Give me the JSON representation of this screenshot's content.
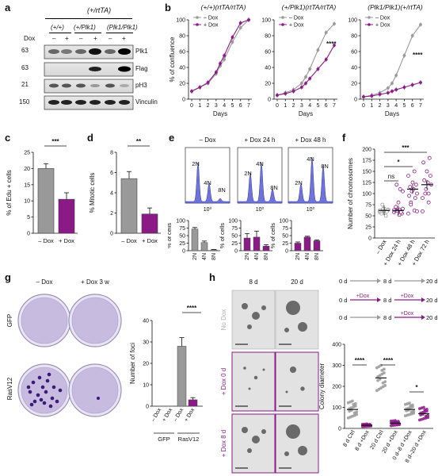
{
  "panels": {
    "a": {
      "label": "a",
      "header": "(+/rtTA)",
      "genotypes": [
        "(+/+)",
        "(+/Plk1)",
        "(Plk1/Plk1)"
      ],
      "dox_label": "Dox",
      "dox_states": [
        "–",
        "+",
        "–",
        "+",
        "–",
        "+"
      ],
      "mw": [
        "63",
        "63",
        "21",
        "150"
      ],
      "blots": [
        "Plk1",
        "Flag",
        "pH3",
        "Vinculin"
      ]
    },
    "b": {
      "label": "b",
      "titles": [
        "(+/+)(rtTA/rtTA)",
        "(+/Plk1)(rtTA/rtTA)",
        "(Plk1/Plk1)(+/rtTA)"
      ],
      "legend": [
        "– Dox",
        "+ Dox"
      ],
      "ylabel": "% of confluence",
      "xlabel": "Days",
      "yticks": [
        "0",
        "20",
        "40",
        "60",
        "80",
        "100"
      ],
      "xticks": [
        "0",
        "1",
        "2",
        "3",
        "4",
        "5",
        "6",
        "7"
      ],
      "sig": "****"
    },
    "c": {
      "label": "c",
      "ylabel": "% of Edu + cells",
      "yticks": [
        "0",
        "5",
        "10",
        "15",
        "20",
        "25"
      ],
      "cats": [
        "– Dox",
        "+ Dox"
      ],
      "sig": "***"
    },
    "d": {
      "label": "d",
      "ylabel": "% Mitotic cells",
      "yticks": [
        "0",
        "2",
        "4",
        "6",
        "8"
      ],
      "cats": [
        "– Dox",
        "+ Dox"
      ],
      "sig": "**"
    },
    "e": {
      "label": "e",
      "titles": [
        "– Dox",
        "+ Dox 24 h",
        "+ Dox 48 h"
      ],
      "peaks": [
        "2N",
        "4N",
        "8N"
      ],
      "axis_tick": "10⁰",
      "ylabel": "% of cells",
      "yticks": [
        "0",
        "25",
        "50",
        "75",
        "100"
      ],
      "cats": [
        "2N",
        "4N",
        "8N"
      ]
    },
    "f": {
      "label": "f",
      "ylabel": "Number of chromosomes",
      "yticks": [
        "0",
        "25",
        "50",
        "75",
        "100",
        "125",
        "150",
        "175",
        "200"
      ],
      "cats": [
        "– Dox",
        "+ Dox 24 h",
        "+ Dox 48 h",
        "+ Dox 72 h"
      ],
      "sigs": [
        "ns",
        "*",
        "***"
      ]
    },
    "g": {
      "label": "g",
      "cols": [
        "– Dox",
        "+ Dox 3 w"
      ],
      "rows": [
        "GFP",
        "RasV12"
      ],
      "ylabel": "Number of foci",
      "yticks": [
        "0",
        "10",
        "20",
        "30",
        "40"
      ],
      "cats": [
        "– Dox",
        "+ Dox",
        "– Dox",
        "+ Dox"
      ],
      "groups": [
        "GFP",
        "RasV12"
      ],
      "sig": "****"
    },
    "h": {
      "label": "h",
      "cols": [
        "8 d",
        "20 d"
      ],
      "rows": [
        "No Dox",
        "+ Dox 0 d",
        "+ Dox 8 d"
      ],
      "scheme": [
        {
          "start": "0 d",
          "mid": "8 d",
          "end": "20 d",
          "tag1": "",
          "tag2": ""
        },
        {
          "start": "0 d",
          "mid": "8 d",
          "end": "20 d",
          "tag1": "+Dox",
          "tag2": "+Dox"
        },
        {
          "start": "0 d",
          "mid": "8 d",
          "end": "20 d",
          "tag1": "",
          "tag2": "+Dox"
        }
      ],
      "ylabel": "Colony diameter",
      "yticks": [
        "0",
        "100",
        "200",
        "300",
        "400"
      ],
      "cats": [
        "8 d Ctrl",
        "8 d +Dox",
        "20 d Ctrl",
        "20 d +Dox",
        "0 d–8 d +Dox",
        "8 d–20 d +Dox"
      ],
      "sigs": [
        "****",
        "****",
        "*"
      ]
    }
  },
  "colors": {
    "grey": "#999999",
    "purple": "#8b1a87",
    "hist": "#6f73d8",
    "plate": "#c7bbe0"
  },
  "chart_data": [
    {
      "type": "line",
      "title": "(+/+)(rtTA/rtTA)",
      "xlabel": "Days",
      "ylabel": "% of confluence",
      "x": [
        0,
        1,
        2,
        3,
        3.5,
        4,
        5,
        6,
        7
      ],
      "ylim": [
        0,
        100
      ],
      "series": [
        {
          "name": "– Dox",
          "values": [
            10,
            15,
            20,
            32,
            42,
            50,
            72,
            90,
            100
          ]
        },
        {
          "name": "+ Dox",
          "values": [
            10,
            15,
            21,
            34,
            45,
            55,
            78,
            96,
            100
          ]
        }
      ]
    },
    {
      "type": "line",
      "title": "(+/Plk1)(rtTA/rtTA)",
      "xlabel": "Days",
      "ylabel": "% of confluence",
      "x": [
        0,
        1,
        2,
        3,
        3.5,
        4,
        5,
        6,
        7
      ],
      "ylim": [
        0,
        100
      ],
      "series": [
        {
          "name": "– Dox",
          "values": [
            5,
            8,
            12,
            20,
            28,
            38,
            62,
            84,
            95
          ]
        },
        {
          "name": "+ Dox",
          "values": [
            5,
            7,
            10,
            15,
            20,
            26,
            38,
            50,
            68
          ]
        }
      ]
    },
    {
      "type": "line",
      "title": "(Plk1/Plk1)(+/rtTA)",
      "xlabel": "Days",
      "ylabel": "% of confluence",
      "x": [
        0,
        1,
        2,
        3,
        3.5,
        4,
        5,
        6,
        7
      ],
      "ylim": [
        0,
        100
      ],
      "series": [
        {
          "name": "– Dox",
          "values": [
            3,
            5,
            8,
            14,
            20,
            30,
            55,
            80,
            94
          ]
        },
        {
          "name": "+ Dox",
          "values": [
            3,
            4,
            6,
            8,
            10,
            12,
            15,
            18,
            21
          ]
        }
      ]
    },
    {
      "type": "bar",
      "ylabel": "% of Edu + cells",
      "categories": [
        "– Dox",
        "+ Dox"
      ],
      "values": [
        20,
        10.5
      ],
      "errors": [
        1.5,
        2
      ],
      "ylim": [
        0,
        25
      ]
    },
    {
      "type": "bar",
      "ylabel": "% Mitotic cells",
      "categories": [
        "– Dox",
        "+ Dox"
      ],
      "values": [
        5.4,
        1.9
      ],
      "errors": [
        0.7,
        0.6
      ],
      "ylim": [
        0,
        8
      ]
    },
    {
      "type": "bar",
      "title": "– Dox",
      "ylabel": "% of cells",
      "categories": [
        "2N",
        "4N",
        "8N"
      ],
      "values": [
        72,
        27,
        3
      ],
      "errors": [
        5,
        5,
        1
      ],
      "ylim": [
        0,
        100
      ]
    },
    {
      "type": "bar",
      "title": "+ Dox 24 h",
      "ylabel": "% of cells",
      "categories": [
        "2N",
        "4N",
        "8N"
      ],
      "values": [
        42,
        45,
        15
      ],
      "errors": [
        15,
        20,
        5
      ],
      "ylim": [
        0,
        100
      ]
    },
    {
      "type": "bar",
      "title": "+ Dox 48 h",
      "ylabel": "% of cells",
      "categories": [
        "2N",
        "4N",
        "8N"
      ],
      "values": [
        25,
        45,
        33
      ],
      "errors": [
        4,
        3,
        3
      ],
      "ylim": [
        0,
        100
      ]
    },
    {
      "type": "scatter",
      "ylabel": "Number of chromosomes",
      "categories": [
        "– Dox",
        "+ Dox 24 h",
        "+ Dox 48 h",
        "+ Dox 72 h"
      ],
      "means": [
        62,
        62,
        110,
        120
      ],
      "ylim": [
        0,
        200
      ]
    },
    {
      "type": "bar",
      "ylabel": "Number of foci",
      "categories": [
        "GFP – Dox",
        "GFP + Dox",
        "RasV12 – Dox",
        "RasV12 + Dox"
      ],
      "values": [
        0,
        0,
        28,
        3
      ],
      "errors": [
        0,
        0,
        4,
        1
      ],
      "ylim": [
        0,
        40
      ]
    },
    {
      "type": "scatter",
      "ylabel": "Colony diameter",
      "categories": [
        "8 d Ctrl",
        "8 d +Dox",
        "20 d Ctrl",
        "20 d +Dox",
        "0 d–8 d +Dox",
        "8 d–20 d +Dox"
      ],
      "means": [
        90,
        15,
        240,
        25,
        90,
        70
      ],
      "ylim": [
        0,
        400
      ]
    }
  ]
}
